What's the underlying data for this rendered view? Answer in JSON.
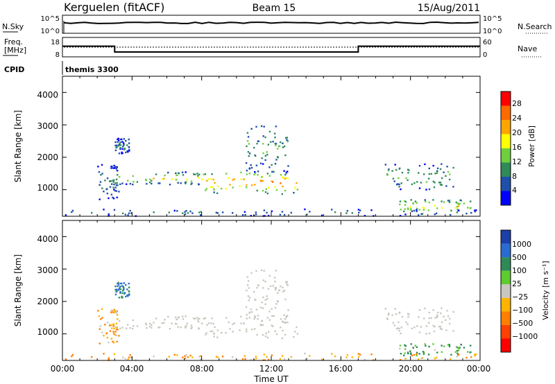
{
  "header": {
    "site": "Kerguelen (fitACF)",
    "beam": "Beam 15",
    "date": "15/Aug/2011"
  },
  "panels": {
    "nsky": {
      "left_label": "N.Sky",
      "left_ticks": [
        "10^5",
        "10^0"
      ],
      "right_ticks": [
        "10^5",
        "10^0"
      ],
      "right_label": "N.Search"
    },
    "freq": {
      "left_label_1": "Freq.",
      "left_label_2": "[MHz]",
      "left_ticks": [
        "18",
        "8"
      ],
      "right_ticks": [
        "60",
        "0"
      ],
      "right_label": "Nave"
    },
    "cpid": {
      "label": "CPID",
      "value": "themis 3300"
    }
  },
  "power_panel": {
    "ylabel": "Slant Range [km]",
    "yticks": [
      "1000",
      "2000",
      "3000",
      "4000"
    ],
    "colorbar_label": "Power [dB]",
    "colorbar_ticks": [
      "4",
      "8",
      "12",
      "16",
      "20",
      "24",
      "28"
    ],
    "colors": [
      "#0000ff",
      "#1f4faa",
      "#2e8b57",
      "#6fcf3f",
      "#ffff00",
      "#ffa500",
      "#ff6a00",
      "#ff0000"
    ]
  },
  "velocity_panel": {
    "ylabel": "Slant Range [km]",
    "yticks": [
      "1000",
      "2000",
      "3000",
      "4000"
    ],
    "colorbar_label": "Velocity [m s⁻¹]",
    "colorbar_ticks": [
      "1000",
      "500",
      "100",
      "25",
      "−25",
      "−100",
      "−500",
      "−1000"
    ],
    "colors": [
      "#1c3fa8",
      "#2a6bd1",
      "#2e8b57",
      "#5ecb2f",
      "#c8c8c0",
      "#ffb400",
      "#ff8000",
      "#ff4000",
      "#ff0000"
    ]
  },
  "xaxis": {
    "ticks": [
      "00:00",
      "04:00",
      "08:00",
      "12:00",
      "16:00",
      "20:00",
      "00:00"
    ],
    "label": "Time UT"
  },
  "chart_data": {
    "type": "heatmap",
    "x_range_hours": [
      0,
      24
    ],
    "y_range_km": [
      180,
      4500
    ],
    "frequency_mhz": [
      {
        "from": 0,
        "to": 3,
        "value": 13.5
      },
      {
        "from": 3,
        "to": 17,
        "value": 10.5
      },
      {
        "from": 17,
        "to": 24,
        "value": 13.5
      }
    ],
    "scatter_regions": [
      {
        "t0": 2.0,
        "t1": 3.2,
        "r0": 700,
        "r1": 1800,
        "power_db": 10,
        "velocity": -100
      },
      {
        "t0": 3.0,
        "t1": 8.0,
        "r0": 1150,
        "r1": 1550,
        "power_db": 18,
        "velocity": 0
      },
      {
        "t0": 8.0,
        "t1": 13.5,
        "r0": 850,
        "r1": 1600,
        "power_db": 24,
        "velocity": 0
      },
      {
        "t0": 10.5,
        "t1": 13.0,
        "r0": 1500,
        "r1": 3000,
        "power_db": 12,
        "velocity": 0
      },
      {
        "t0": 3.0,
        "t1": 3.8,
        "r0": 2100,
        "r1": 2600,
        "power_db": 8,
        "velocity": 500
      },
      {
        "t0": 18.5,
        "t1": 22.5,
        "r0": 1000,
        "r1": 1800,
        "power_db": 14,
        "velocity": 0
      },
      {
        "t0": 19.0,
        "t1": 23.5,
        "r0": 300,
        "r1": 700,
        "power_db": 20,
        "velocity": 100
      },
      {
        "t0": 0.0,
        "t1": 24.0,
        "r0": 180,
        "r1": 400,
        "power_db": 8,
        "velocity": -100
      }
    ]
  }
}
